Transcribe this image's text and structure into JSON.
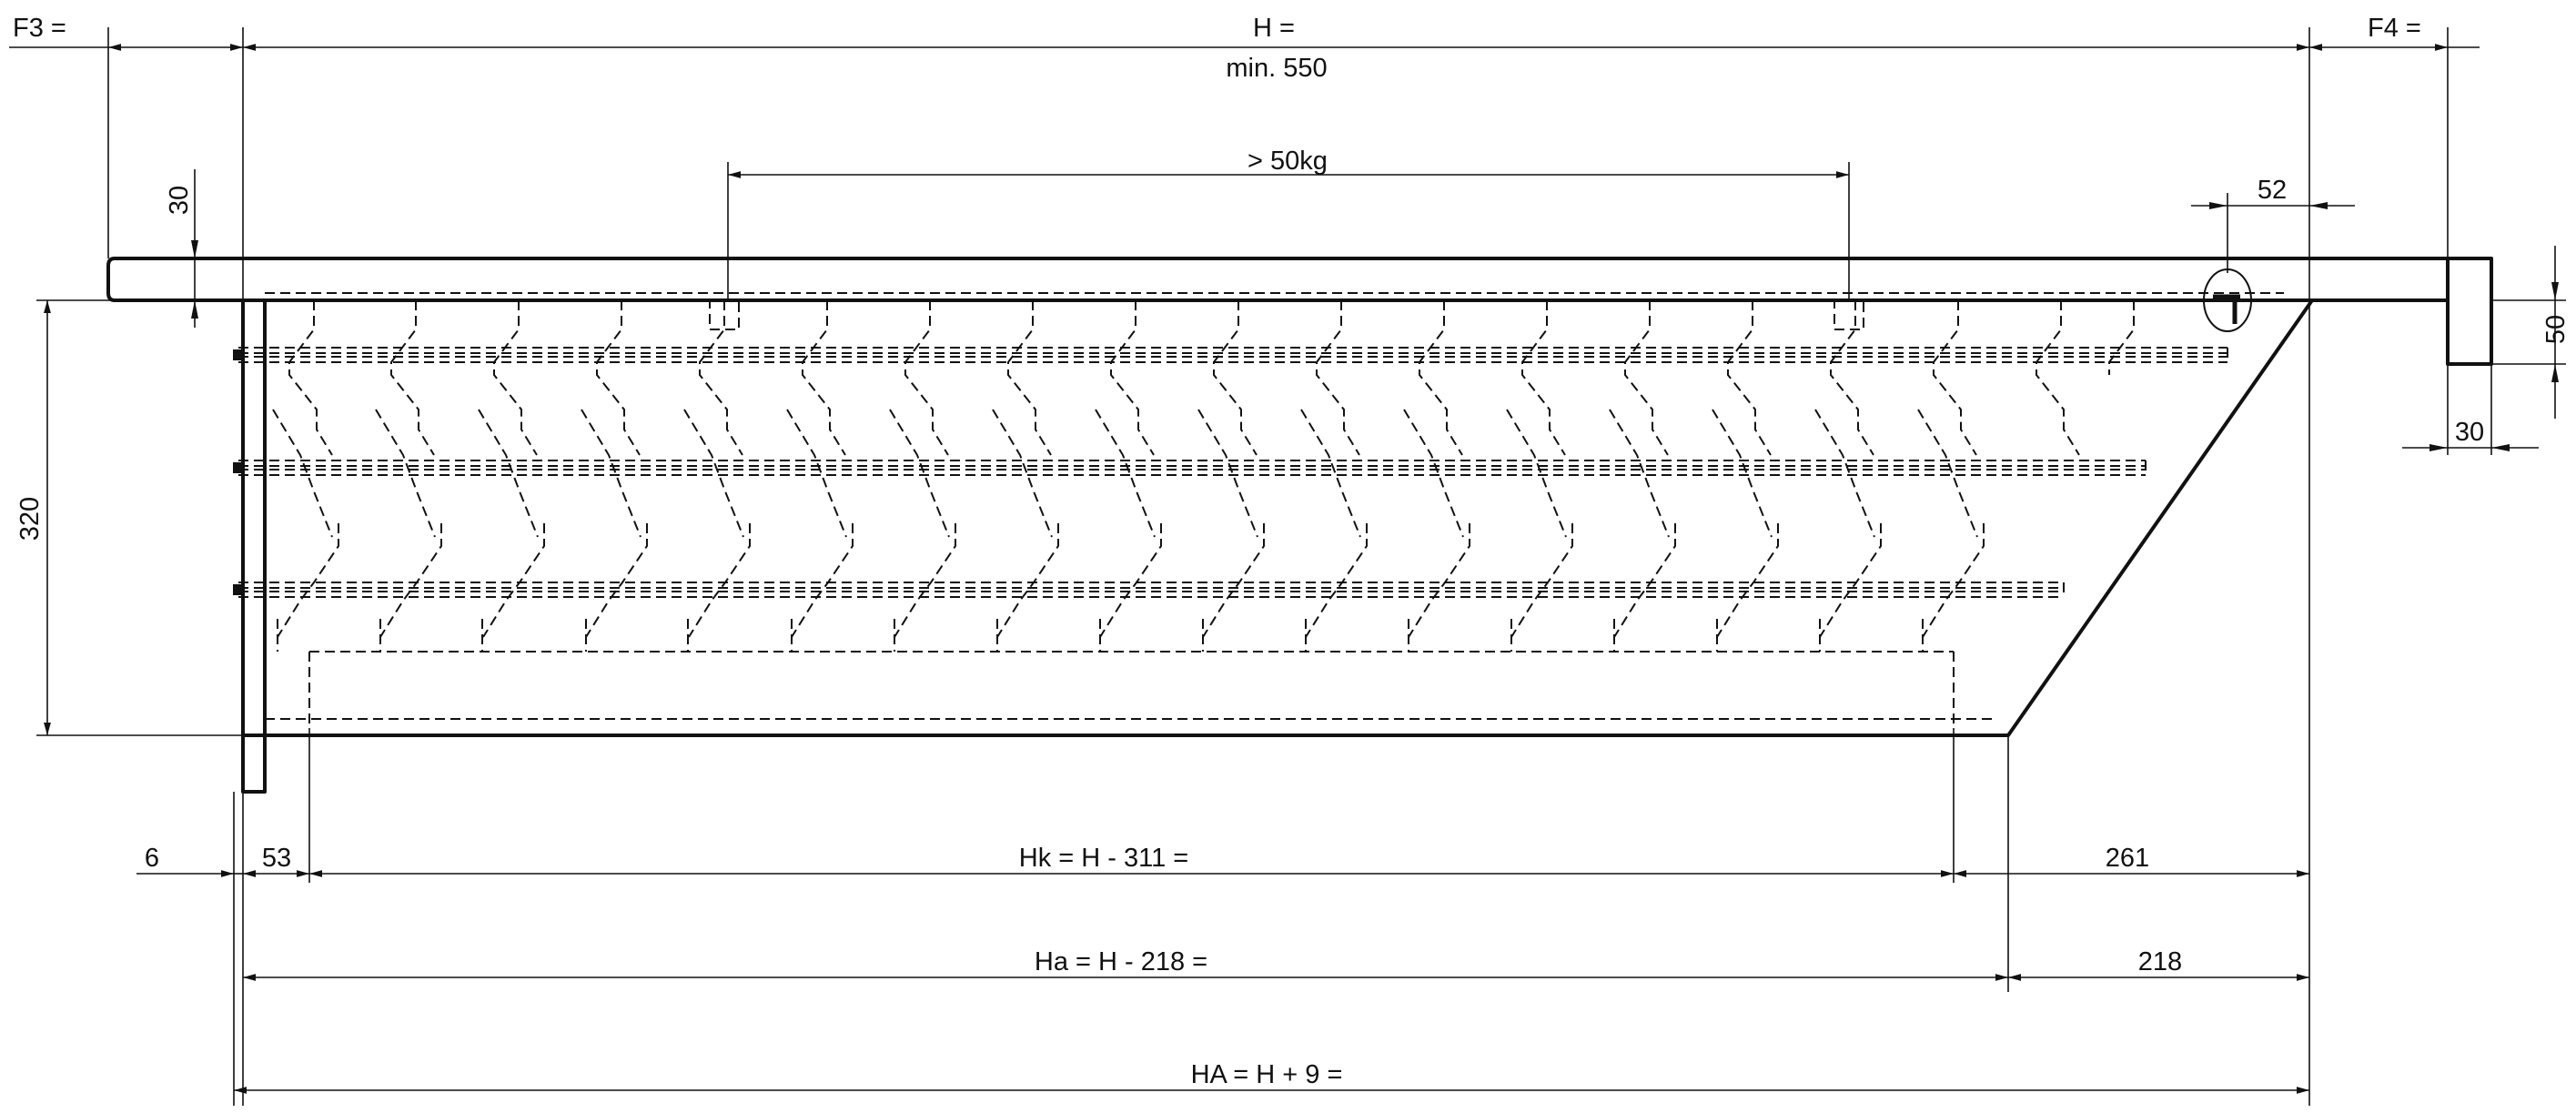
{
  "colors": {
    "background": "#ffffff",
    "ink": "#111111"
  },
  "labels": {
    "f3": "F3 =",
    "h": "H =",
    "h_min": "min. 550",
    "f4": "F4 =",
    "load": "> 50kg",
    "top_30": "30",
    "right_52": "52",
    "right_50": "50",
    "right_30": "30",
    "height_320": "320",
    "dim_6": "6",
    "dim_53": "53",
    "hk": "Hk = H - 311 =",
    "dim_261": "261",
    "ha": "Ha = H - 218 =",
    "dim_218": "218",
    "ha_total": "HA = H + 9 ="
  }
}
